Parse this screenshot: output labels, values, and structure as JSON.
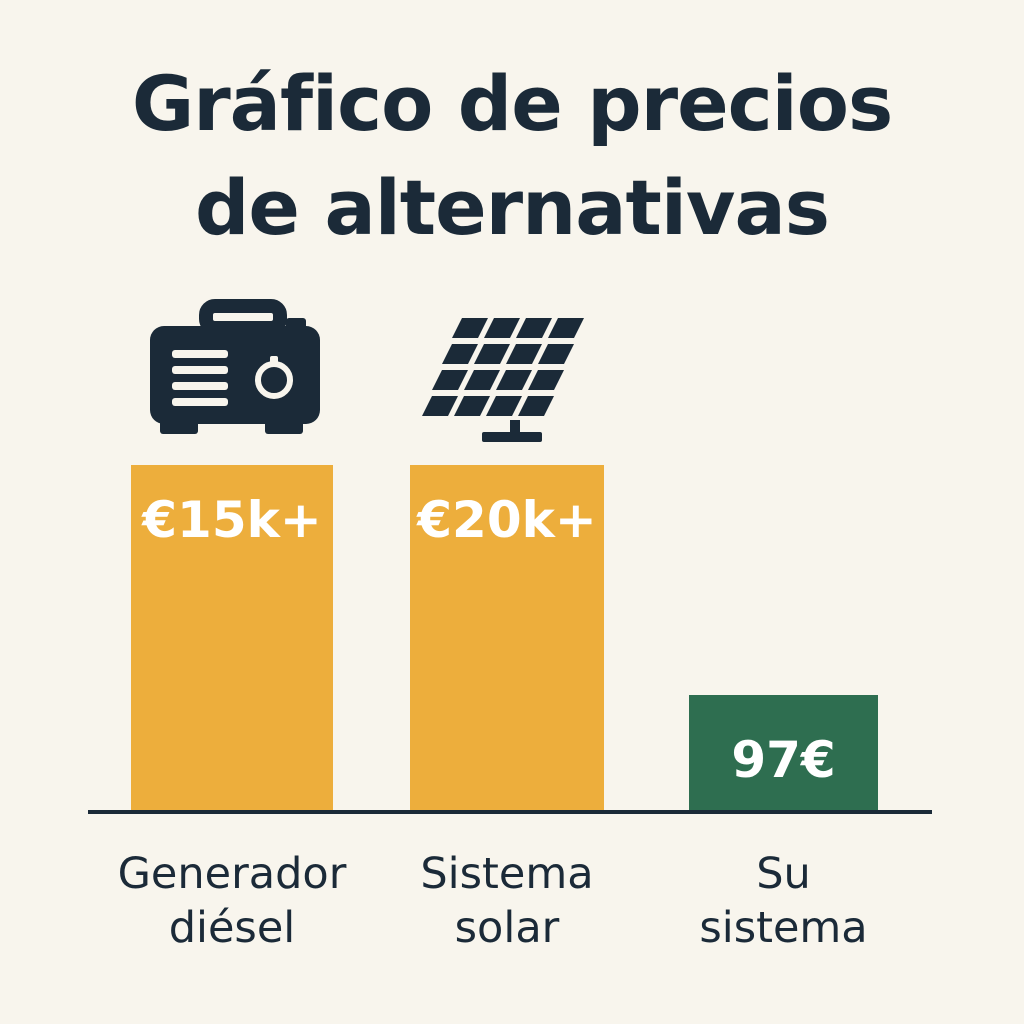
{
  "title_lines": [
    "Gráfico de precios",
    "de alternativas"
  ],
  "chart_data": {
    "type": "bar",
    "categories": [
      [
        "Generador",
        "diésel"
      ],
      [
        "Sistema",
        "solar"
      ],
      [
        "Su",
        "sistema"
      ]
    ],
    "values": [
      15000,
      20000,
      97
    ],
    "value_labels": [
      "€15k+",
      "€20k+",
      "97€"
    ],
    "icons": [
      "generator-icon",
      "solar-panel-icon",
      null
    ],
    "colors": [
      "#edae3c",
      "#edae3c",
      "#2e6e50"
    ],
    "title": "Gráfico de precios de alternativas",
    "xlabel": "",
    "ylabel": ""
  },
  "colors": {
    "background": "#f8f5ed",
    "text": "#1b2a38",
    "accent_orange": "#edae3c",
    "accent_green": "#2e6e50"
  }
}
